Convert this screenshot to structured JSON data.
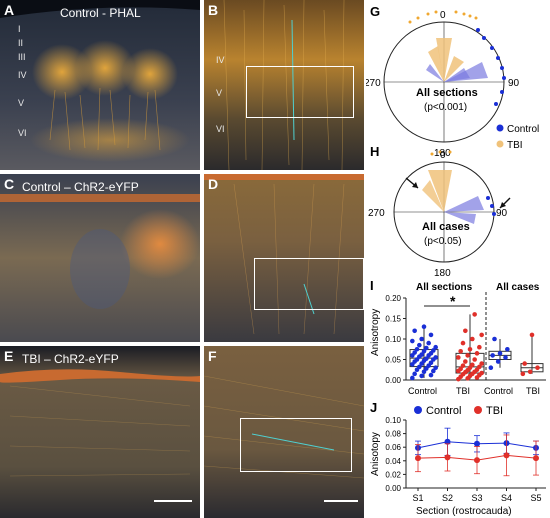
{
  "panels": {
    "A": {
      "label": "A",
      "title": "Control - PHAL",
      "layers": [
        "I",
        "II",
        "III",
        "IV",
        "V",
        "VI"
      ]
    },
    "B": {
      "label": "B",
      "layers": [
        "IV",
        "V",
        "VI"
      ]
    },
    "C": {
      "label": "C",
      "title": "Control – ChR2-eYFP"
    },
    "D": {
      "label": "D"
    },
    "E": {
      "label": "E",
      "title": "TBI – ChR2-eYFP"
    },
    "F": {
      "label": "F"
    }
  },
  "polar_G": {
    "label": "G",
    "tick_top": "0",
    "tick_right": "90",
    "tick_bottom": "180",
    "tick_left": "270",
    "caption_line1": "All sections",
    "caption_line2": "(p<0.001)",
    "legend": [
      {
        "name": "Control",
        "color": "#1a2fd6"
      },
      {
        "name": "TBI",
        "color": "#f0c27a"
      }
    ]
  },
  "polar_H": {
    "label": "H",
    "tick_top": "0",
    "tick_right": "90",
    "tick_bottom": "180",
    "tick_left": "270",
    "caption_line1": "All cases",
    "caption_line2": "(p<0.05)"
  },
  "panel_I": {
    "label": "I",
    "ylabel": "Anisotropy",
    "yticks": [
      "0.00",
      "0.05",
      "0.10",
      "0.15",
      "0.20"
    ],
    "group_titles": [
      "All sections",
      "All cases"
    ],
    "xlabels": [
      "Control",
      "TBI",
      "Control",
      "TBI"
    ],
    "significance": "*"
  },
  "panel_J": {
    "label": "J",
    "ylabel": "Anisotopy",
    "xlabel": "Section (rostrocauda)",
    "yticks": [
      "0.00",
      "0.02",
      "0.04",
      "0.06",
      "0.08",
      "0.10"
    ],
    "xticks": [
      "S1",
      "S2",
      "S3",
      "S4",
      "S5"
    ],
    "legend": [
      {
        "name": "Control",
        "color": "#1a2fd6"
      },
      {
        "name": "TBI",
        "color": "#e0302a"
      }
    ]
  },
  "chart_data": [
    {
      "type": "scatter",
      "panel": "I",
      "title": "All sections",
      "ylabel": "Anisotropy",
      "ylim": [
        0,
        0.2
      ],
      "series": [
        {
          "name": "Control",
          "color": "#1a2fd6",
          "values": [
            0.005,
            0.01,
            0.012,
            0.015,
            0.02,
            0.022,
            0.025,
            0.028,
            0.03,
            0.032,
            0.035,
            0.038,
            0.04,
            0.042,
            0.045,
            0.047,
            0.05,
            0.05,
            0.052,
            0.055,
            0.057,
            0.06,
            0.06,
            0.062,
            0.065,
            0.067,
            0.07,
            0.072,
            0.075,
            0.078,
            0.08,
            0.085,
            0.09,
            0.095,
            0.1,
            0.11,
            0.12,
            0.13
          ]
        },
        {
          "name": "TBI",
          "color": "#e0302a",
          "values": [
            0.002,
            0.004,
            0.006,
            0.008,
            0.01,
            0.012,
            0.014,
            0.015,
            0.017,
            0.019,
            0.02,
            0.022,
            0.024,
            0.025,
            0.027,
            0.03,
            0.032,
            0.035,
            0.037,
            0.04,
            0.045,
            0.05,
            0.055,
            0.06,
            0.065,
            0.07,
            0.075,
            0.08,
            0.09,
            0.1,
            0.11,
            0.12,
            0.16
          ]
        }
      ]
    },
    {
      "type": "scatter",
      "panel": "I",
      "title": "All cases",
      "ylim": [
        0,
        0.2
      ],
      "series": [
        {
          "name": "Control",
          "color": "#1a2fd6",
          "values": [
            0.03,
            0.045,
            0.055,
            0.06,
            0.065,
            0.075,
            0.1
          ]
        },
        {
          "name": "TBI",
          "color": "#e0302a",
          "values": [
            0.015,
            0.02,
            0.03,
            0.04,
            0.11
          ]
        }
      ]
    },
    {
      "type": "line",
      "panel": "J",
      "xlabel": "Section (rostrocauda)",
      "ylabel": "Anisotopy",
      "categories": [
        "S1",
        "S2",
        "S3",
        "S4",
        "S5"
      ],
      "ylim": [
        0,
        0.1
      ],
      "series": [
        {
          "name": "Control",
          "color": "#1a2fd6",
          "values": [
            0.059,
            0.068,
            0.065,
            0.066,
            0.059
          ],
          "err": [
            0.01,
            0.02,
            0.012,
            0.015,
            0.01
          ]
        },
        {
          "name": "TBI",
          "color": "#e0302a",
          "values": [
            0.044,
            0.045,
            0.041,
            0.048,
            0.044
          ],
          "err": [
            0.02,
            0.02,
            0.02,
            0.03,
            0.025
          ]
        }
      ]
    }
  ]
}
